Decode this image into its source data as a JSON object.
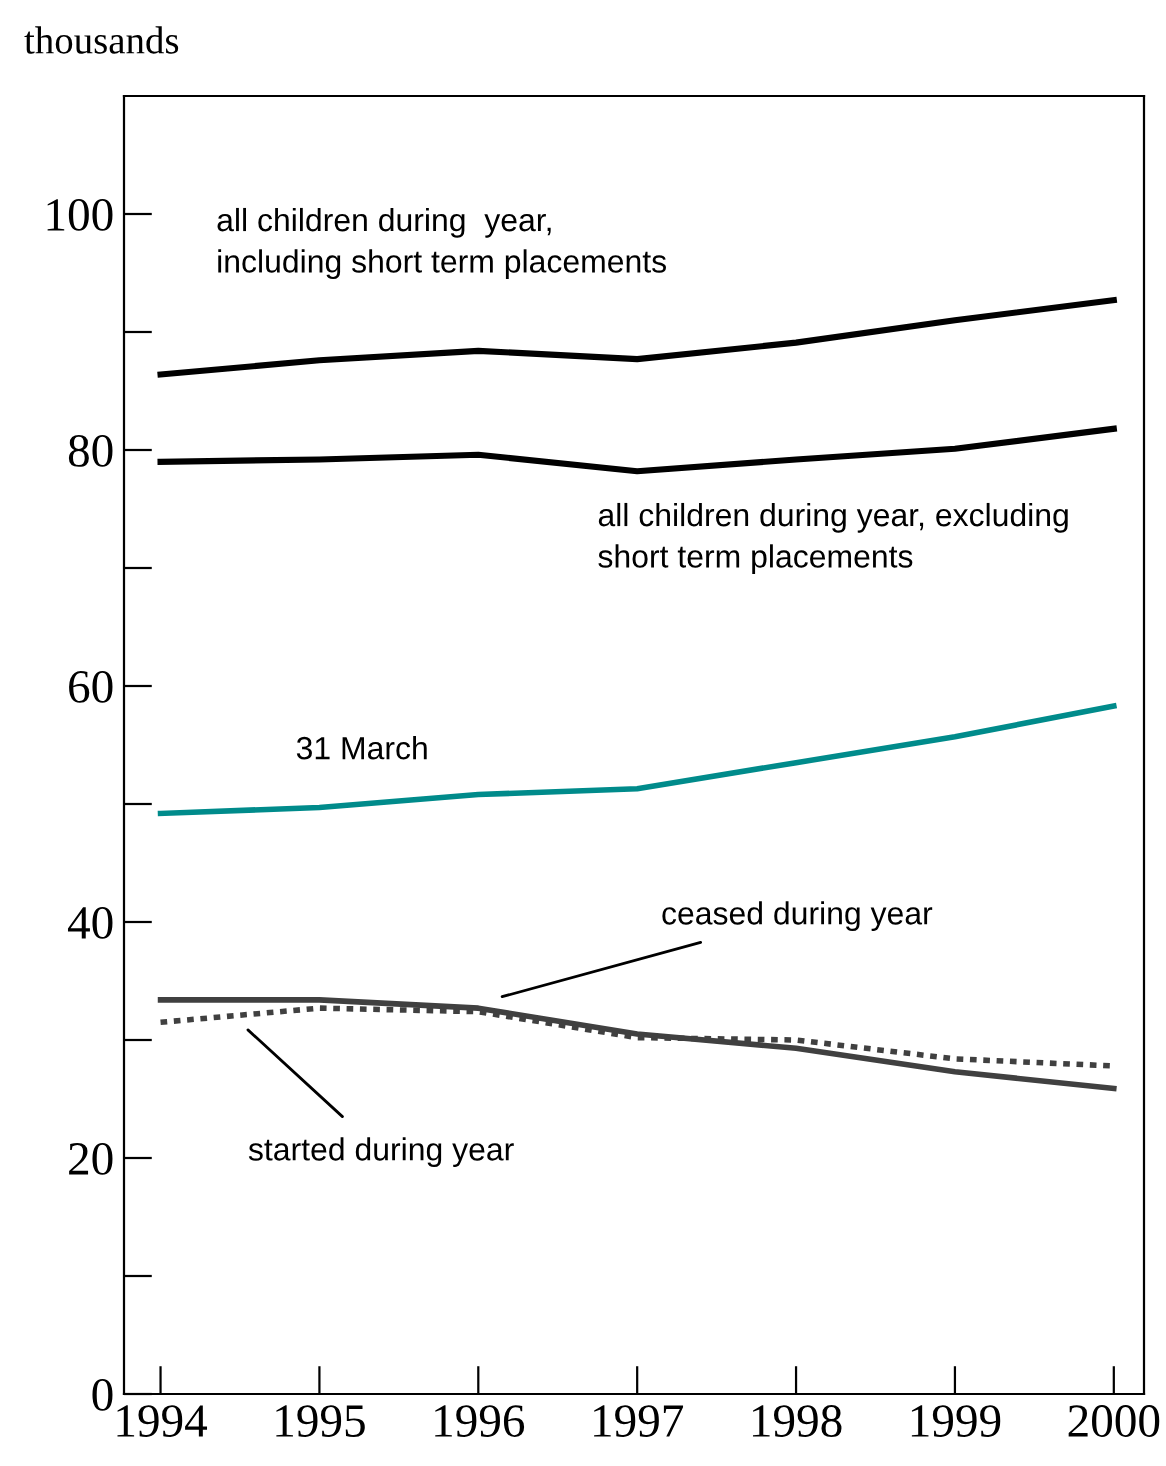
{
  "chart_data": {
    "type": "line",
    "ylabel": "thousands",
    "x": [
      1994,
      1995,
      1996,
      1997,
      1998,
      1999,
      2000
    ],
    "series": [
      {
        "name": "all children during  year,\nincluding short term placements",
        "color": "#000000",
        "values": [
          86.4,
          87.6,
          88.4,
          87.7,
          89.1,
          91.0,
          92.7
        ]
      },
      {
        "name": "all children during year, excluding\nshort term placements",
        "color": "#000000",
        "values": [
          79.0,
          79.2,
          79.6,
          78.2,
          79.2,
          80.1,
          81.8
        ]
      },
      {
        "name": "31 March",
        "color": "#008b8b",
        "values": [
          49.2,
          49.7,
          50.8,
          51.3,
          53.5,
          55.7,
          58.3
        ]
      },
      {
        "name": "ceased during year",
        "color": "#404040",
        "values": [
          33.4,
          33.4,
          32.7,
          30.5,
          29.3,
          27.3,
          25.9
        ]
      },
      {
        "name": "started during year",
        "color": "#404040",
        "line_style": "dotted",
        "values": [
          31.5,
          32.7,
          32.4,
          30.2,
          30.0,
          28.4,
          27.8
        ]
      }
    ],
    "xlim": [
      1993.77,
      2000.19
    ],
    "xticks": [
      1994,
      1995,
      1996,
      1997,
      1998,
      1999,
      2000
    ],
    "ylim": [
      0,
      110
    ],
    "yticks": [
      0,
      {
        "value": 10,
        "label": null
      },
      20,
      {
        "value": 30,
        "label": null
      },
      40,
      {
        "value": 50,
        "label": null
      },
      60,
      {
        "value": 70,
        "label": null
      },
      80,
      {
        "value": 90,
        "label": null
      },
      100
    ],
    "grid": false,
    "legend": false,
    "marker": "none"
  }
}
